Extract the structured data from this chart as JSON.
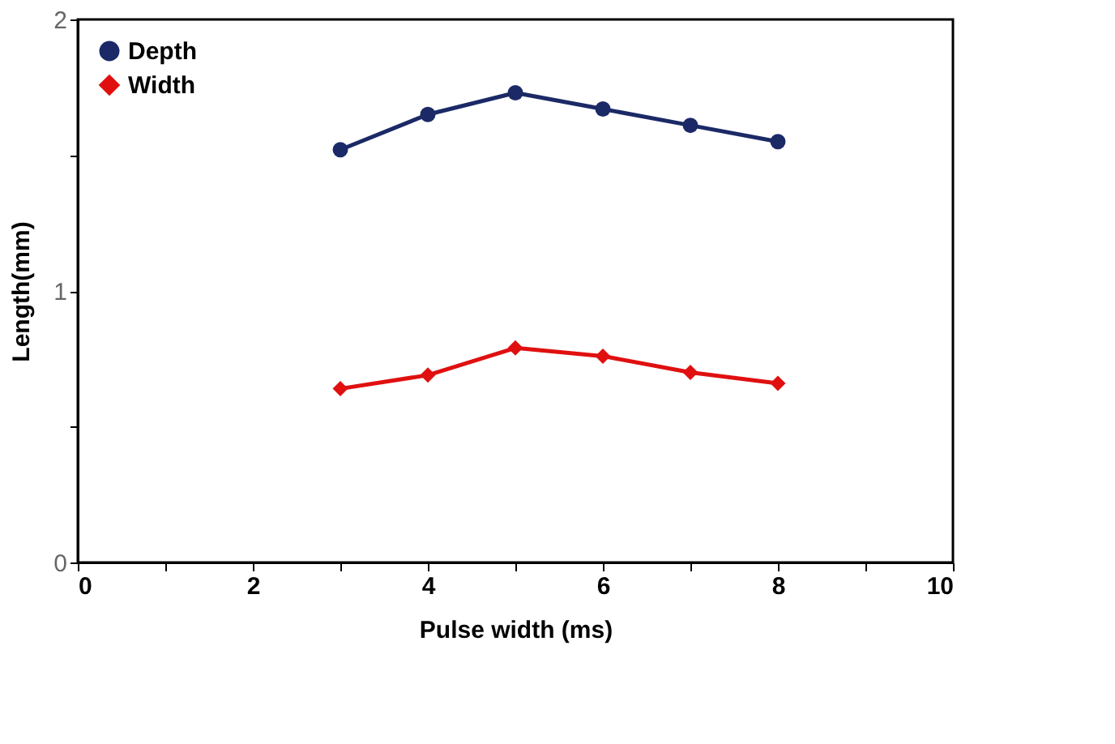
{
  "chart_data": {
    "type": "line",
    "xlabel": "Pulse width (ms)",
    "ylabel": "Length(mm)",
    "x": [
      3,
      4,
      5,
      6,
      7,
      8
    ],
    "series": [
      {
        "name": "Depth",
        "color": "#1b2a66",
        "marker": "circle",
        "values": [
          1.52,
          1.65,
          1.73,
          1.67,
          1.61,
          1.55
        ]
      },
      {
        "name": "Width",
        "color": "#e01010",
        "marker": "diamond",
        "values": [
          0.64,
          0.69,
          0.79,
          0.76,
          0.7,
          0.66
        ]
      }
    ],
    "xlim": [
      0,
      10
    ],
    "xticks": [
      0,
      {
        "value": 1,
        "label": null
      },
      2,
      {
        "value": 3,
        "label": null
      },
      4,
      {
        "value": 5,
        "label": null
      },
      6,
      {
        "value": 7,
        "label": null
      },
      8,
      {
        "value": 9,
        "label": null
      },
      10
    ],
    "ylim": [
      0,
      2
    ],
    "yticks": [
      0,
      {
        "value": 0.5,
        "label": null
      },
      1,
      {
        "value": 1.5,
        "label": null
      },
      2
    ],
    "grid": false,
    "legend": "top left",
    "line_style": "solid"
  }
}
